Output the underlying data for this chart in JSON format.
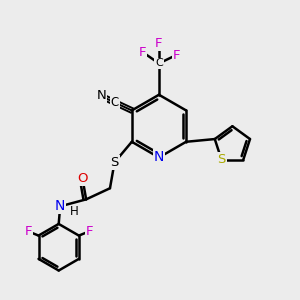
{
  "background_color": "#ececec",
  "bond_color": "#000000",
  "bond_width": 1.8,
  "figsize": [
    3.0,
    3.0
  ],
  "dpi": 100,
  "xlim": [
    0,
    10
  ],
  "ylim": [
    0,
    10
  ],
  "atom_colors": {
    "N": "#0000ee",
    "O": "#dd0000",
    "F": "#cc00cc",
    "S_thiophene": "#aaaa00",
    "S_thioether": "#000000",
    "C": "#000000"
  }
}
